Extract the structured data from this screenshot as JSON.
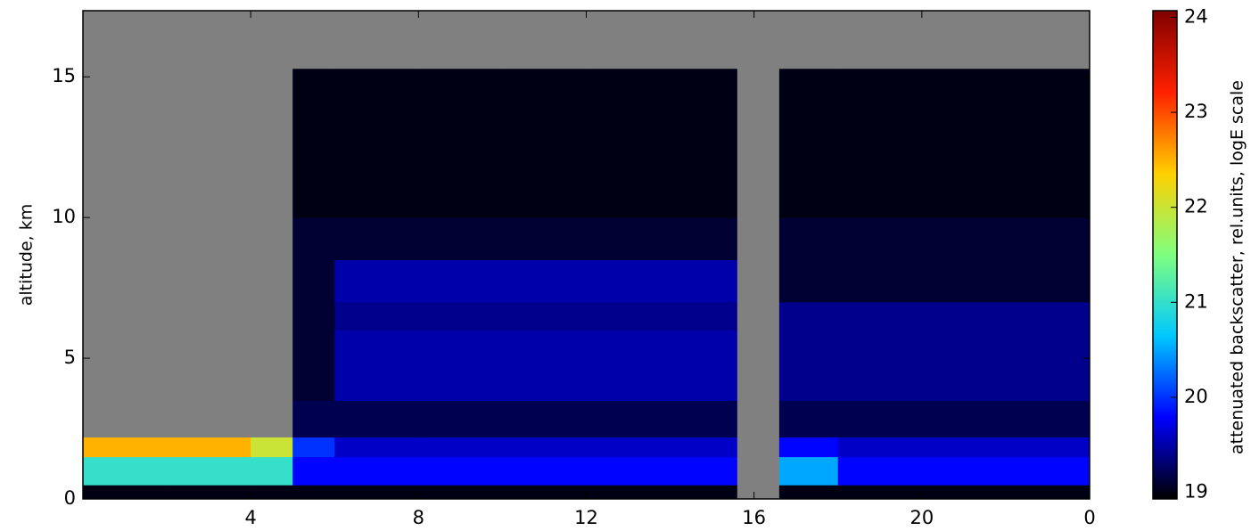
{
  "chart_data": {
    "type": "heatmap",
    "y_label": "altitude, km",
    "colorbar_label": "attenuated backscatter, rel.units, logE scale",
    "x_edges": [
      0,
      2,
      4,
      5,
      6,
      8,
      10,
      12,
      14,
      15.6,
      16.6,
      18,
      20,
      22,
      24
    ],
    "y_edges": [
      0,
      0.5,
      1.5,
      2.2,
      3.5,
      6,
      7,
      8.5,
      10,
      15.3,
      17.35
    ],
    "values": [
      [
        19,
        19,
        19,
        19,
        19,
        19,
        19,
        19,
        19,
        null,
        19,
        19,
        19,
        19
      ],
      [
        21,
        21,
        21,
        19.8,
        19.8,
        19.8,
        19.8,
        19.8,
        19.8,
        null,
        20.5,
        19.8,
        19.8,
        19.8
      ],
      [
        22.5,
        22.5,
        22,
        20,
        19.6,
        19.6,
        19.6,
        19.6,
        19.6,
        null,
        19.8,
        19.6,
        19.6,
        19.6
      ],
      [
        null,
        null,
        null,
        19.2,
        19.2,
        19.2,
        19.2,
        19.2,
        19.2,
        null,
        19.2,
        19.2,
        19.2,
        19.2
      ],
      [
        null,
        null,
        null,
        19.1,
        19.5,
        19.5,
        19.5,
        19.5,
        19.5,
        null,
        19.4,
        19.4,
        19.4,
        19.4
      ],
      [
        null,
        null,
        null,
        19.1,
        19.4,
        19.4,
        19.4,
        19.4,
        19.4,
        null,
        19.4,
        19.4,
        19.4,
        19.4
      ],
      [
        null,
        null,
        null,
        19.1,
        19.5,
        19.5,
        19.5,
        19.5,
        19.5,
        null,
        19.1,
        19.1,
        19.1,
        19.1
      ],
      [
        null,
        null,
        null,
        19.1,
        19.1,
        19.1,
        19.1,
        19.1,
        19.1,
        null,
        19.1,
        19.1,
        19.1,
        19.1
      ],
      [
        null,
        null,
        null,
        19,
        19,
        19,
        19,
        19,
        19,
        null,
        19,
        19,
        19,
        19
      ],
      [
        null,
        null,
        null,
        null,
        null,
        null,
        null,
        null,
        null,
        null,
        null,
        null,
        null,
        null
      ]
    ],
    "xlim": [
      0,
      24
    ],
    "xticks": [
      4,
      8,
      12,
      16,
      20,
      {
        "value": 24,
        "label": "0"
      }
    ],
    "ylim": [
      0,
      17.35
    ],
    "yticks": [
      0,
      5,
      10,
      15
    ],
    "clim": [
      18.93,
      24.07
    ],
    "cticks": [
      19,
      20,
      21,
      22,
      23,
      24
    ],
    "colormap": [
      "#000000",
      "#0000ff",
      "#00c8ff",
      "#7fff7f",
      "#ffd000",
      "#ff2000",
      "#800000"
    ],
    "nan_color": "#808080"
  }
}
